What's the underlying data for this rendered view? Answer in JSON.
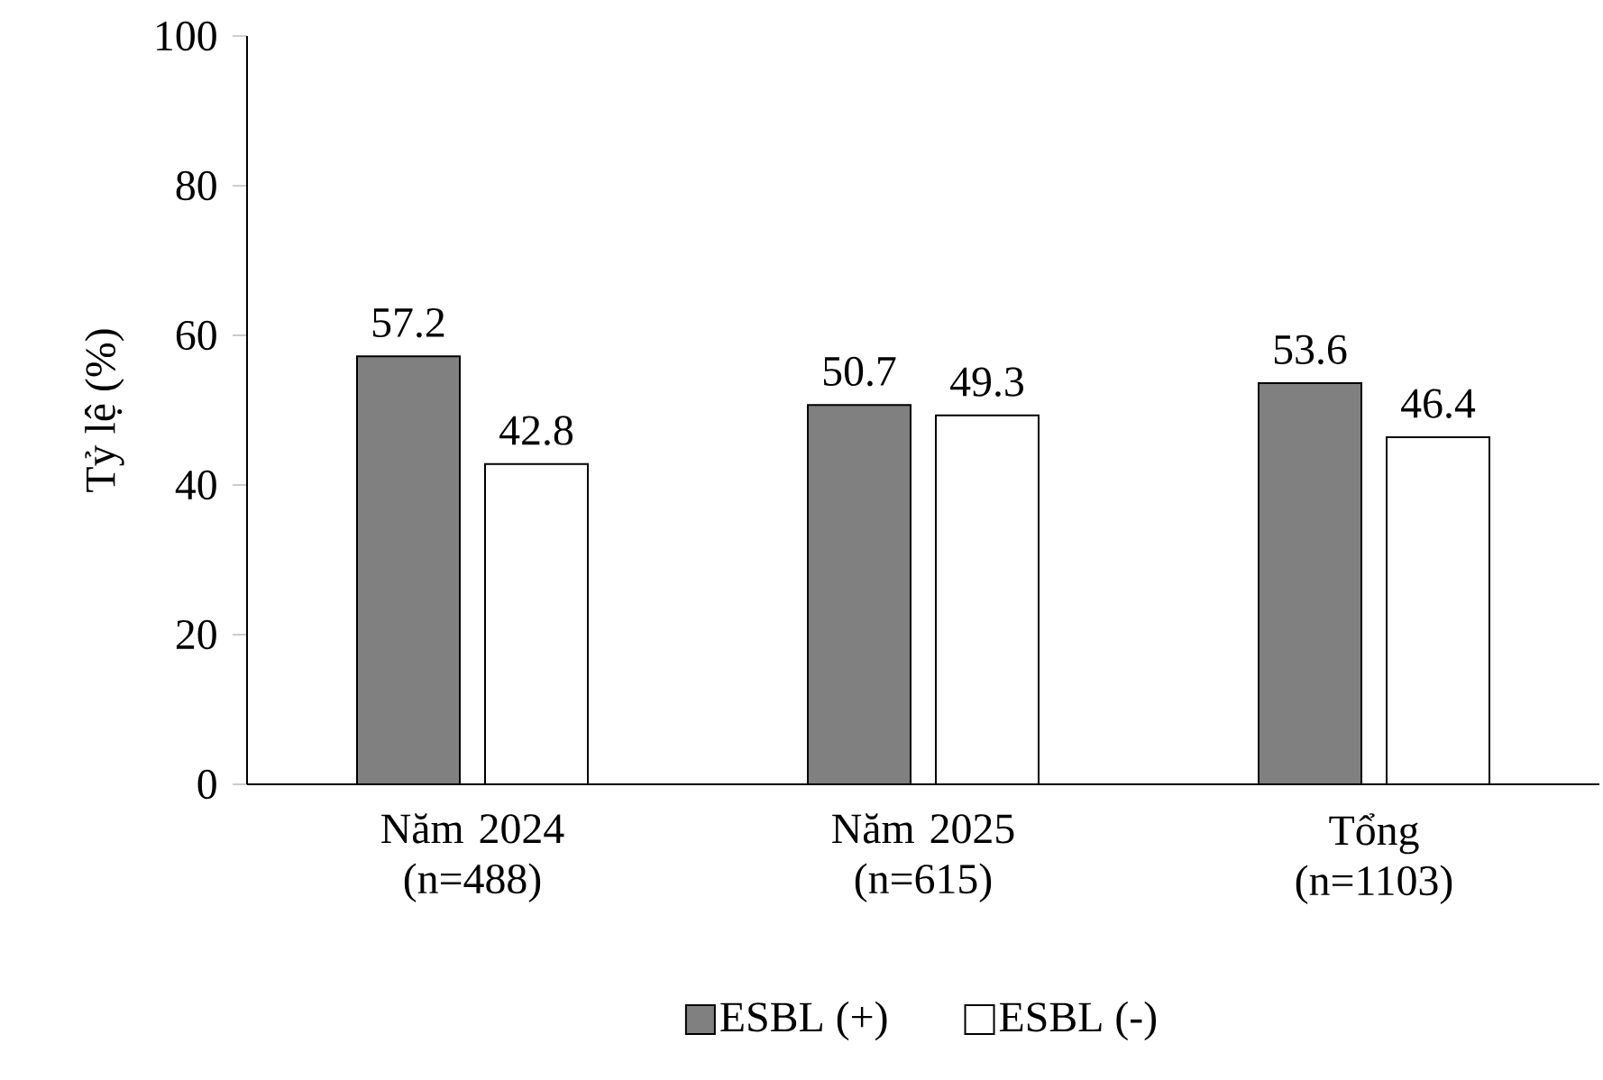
{
  "chart_data": {
    "type": "bar",
    "ylabel": "Tỷ lệ  (%)",
    "categories": [
      "Năm 2024 (n=488)",
      "Năm 2025 (n=615)",
      "Tổng (n=1103)"
    ],
    "series": [
      {
        "name": "ESBL (+)",
        "color": "#808080",
        "values": [
          57.2,
          50.7,
          53.6
        ]
      },
      {
        "name": "ESBL (-)",
        "color": "#ffffff",
        "values": [
          42.8,
          49.3,
          46.4
        ]
      }
    ],
    "ylim": [
      0,
      100
    ],
    "yticks": [
      0,
      20,
      40,
      60,
      80,
      100
    ],
    "data_labels": true,
    "legend": "bottom",
    "grid": false
  }
}
